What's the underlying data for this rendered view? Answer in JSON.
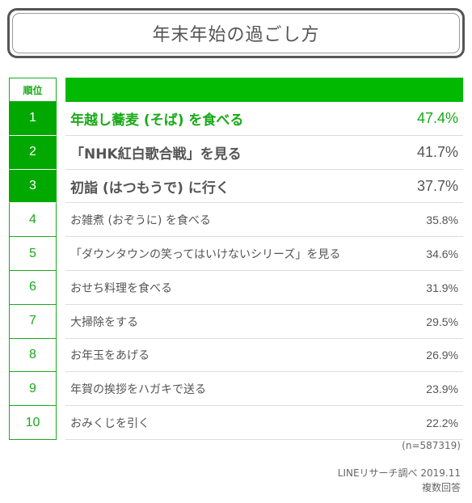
{
  "title": "年末年始の過ごし方",
  "header": {
    "rank_label": "順位"
  },
  "colors": {
    "accent": "#00b900",
    "text": "#555555"
  },
  "rows": [
    {
      "rank": "1",
      "item": "年越し蕎麦 (そば) を食べる",
      "pct": "47.4%"
    },
    {
      "rank": "2",
      "item": "「NHK紅白歌合戦」を見る",
      "pct": "41.7%"
    },
    {
      "rank": "3",
      "item": "初詣 (はつもうで) に行く",
      "pct": "37.7%"
    },
    {
      "rank": "4",
      "item": "お雑煮 (おぞうに) を食べる",
      "pct": "35.8%"
    },
    {
      "rank": "5",
      "item": "「ダウンタウンの笑ってはいけないシリーズ」を見る",
      "pct": "34.6%"
    },
    {
      "rank": "6",
      "item": "おせち料理を食べる",
      "pct": "31.9%"
    },
    {
      "rank": "7",
      "item": "大掃除をする",
      "pct": "29.5%"
    },
    {
      "rank": "8",
      "item": "お年玉をあげる",
      "pct": "26.9%"
    },
    {
      "rank": "9",
      "item": "年賀の挨拶をハガキで送る",
      "pct": "23.9%"
    },
    {
      "rank": "10",
      "item": "おみくじを引く",
      "pct": "22.2%"
    }
  ],
  "footer": {
    "sample": "(n=587319)",
    "source": "LINEリサーチ調べ 2019.11",
    "method": "複数回答"
  }
}
